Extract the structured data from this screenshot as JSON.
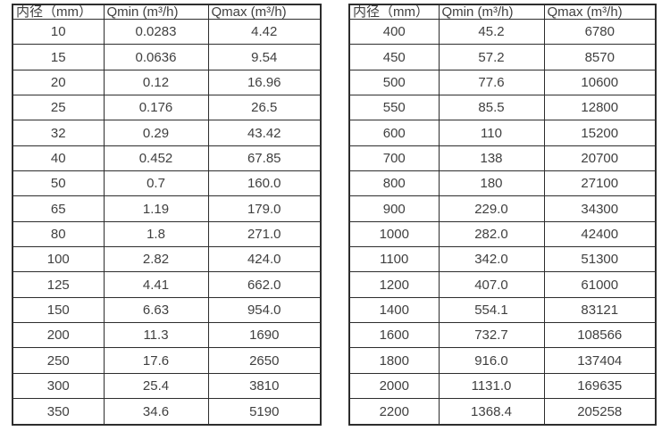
{
  "tables": [
    {
      "name": "flow-table-dn10-350",
      "headers": [
        "内径（mm）",
        "Qmin (m³/h)",
        "Qmax (m³/h)"
      ],
      "rows": [
        [
          "10",
          "0.0283",
          "4.42"
        ],
        [
          "15",
          "0.0636",
          "9.54"
        ],
        [
          "20",
          "0.12",
          "16.96"
        ],
        [
          "25",
          "0.176",
          "26.5"
        ],
        [
          "32",
          "0.29",
          "43.42"
        ],
        [
          "40",
          "0.452",
          "67.85"
        ],
        [
          "50",
          "0.7",
          "160.0"
        ],
        [
          "65",
          "1.19",
          "179.0"
        ],
        [
          "80",
          "1.8",
          "271.0"
        ],
        [
          "100",
          "2.82",
          "424.0"
        ],
        [
          "125",
          "4.41",
          "662.0"
        ],
        [
          "150",
          "6.63",
          "954.0"
        ],
        [
          "200",
          "11.3",
          "1690"
        ],
        [
          "250",
          "17.6",
          "2650"
        ],
        [
          "300",
          "25.4",
          "3810"
        ],
        [
          "350",
          "34.6",
          "5190"
        ]
      ]
    },
    {
      "name": "flow-table-dn400-2200",
      "headers": [
        "内径（mm）",
        "Qmin (m³/h)",
        "Qmax (m³/h)"
      ],
      "rows": [
        [
          "400",
          "45.2",
          "6780"
        ],
        [
          "450",
          "57.2",
          "8570"
        ],
        [
          "500",
          "77.6",
          "10600"
        ],
        [
          "550",
          "85.5",
          "12800"
        ],
        [
          "600",
          "110",
          "15200"
        ],
        [
          "700",
          "138",
          "20700"
        ],
        [
          "800",
          "180",
          "27100"
        ],
        [
          "900",
          "229.0",
          "34300"
        ],
        [
          "1000",
          "282.0",
          "42400"
        ],
        [
          "1100",
          "342.0",
          "51300"
        ],
        [
          "1200",
          "407.0",
          "61000"
        ],
        [
          "1400",
          "554.1",
          "83121"
        ],
        [
          "1600",
          "732.7",
          "108566"
        ],
        [
          "1800",
          "916.0",
          "137404"
        ],
        [
          "2000",
          "1131.0",
          "169635"
        ],
        [
          "2200",
          "1368.4",
          "205258"
        ]
      ]
    }
  ],
  "colors": {
    "border": "#2d2d2d",
    "text": "#404040",
    "background": "#ffffff"
  }
}
